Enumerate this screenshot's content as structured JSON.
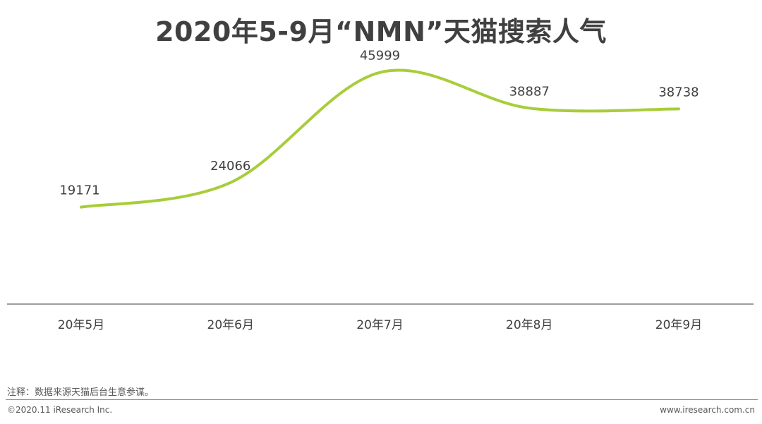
{
  "title": "2020年5-9月“NMN”天猫搜索人气",
  "note": "注释：数据来源天猫后台生意参谋。",
  "footer": {
    "copyright": "©2020.11 iResearch Inc.",
    "website": "www.iresearch.com.cn"
  },
  "chart_data": {
    "type": "line",
    "title": "2020年5-9月“NMN”天猫搜索人气",
    "categories": [
      "20年5月",
      "20年6月",
      "20年7月",
      "20年8月",
      "20年9月"
    ],
    "series": [
      {
        "values": [
          19171,
          24066,
          45999,
          38887,
          38738
        ]
      }
    ],
    "data_labels": [
      "19171",
      "24066",
      "45999",
      "38887",
      "38738"
    ],
    "xlabel": "",
    "ylabel": "",
    "ylim": [
      0,
      52000
    ],
    "grid": false,
    "legend": "none",
    "smooth": true,
    "colors": {
      "line": "#a8cd3a",
      "axis": "#7f7f7f",
      "text": "#404040"
    }
  }
}
